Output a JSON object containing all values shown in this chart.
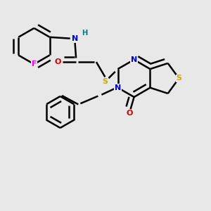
{
  "background_color": "#e8e8e8",
  "atom_colors": {
    "C": "#000000",
    "N": "#0000cc",
    "O": "#cc0000",
    "S": "#ccaa00",
    "F": "#ff00ff",
    "H": "#008080"
  },
  "bond_color": "#000000",
  "bond_width": 1.8
}
